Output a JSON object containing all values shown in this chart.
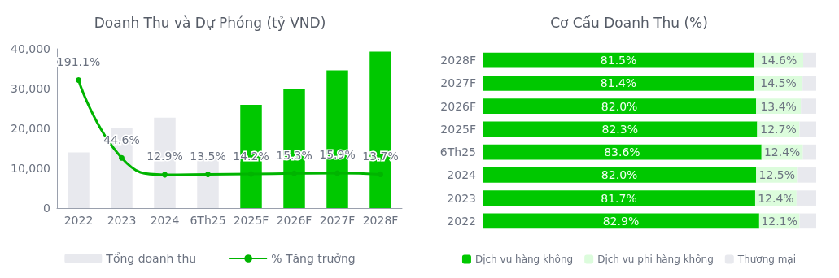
{
  "chart_data": [
    {
      "type": "bar",
      "title": "Doanh Thu và Dự Phóng (tỷ VND)",
      "categories": [
        "2022",
        "2023",
        "2024",
        "6Th25",
        "2025F",
        "2026F",
        "2027F",
        "2028F"
      ],
      "ylim": [
        0,
        40000
      ],
      "yticks": [
        0,
        {
          "value": 10000,
          "label": "10,000"
        },
        {
          "value": 20000,
          "label": "20,000"
        },
        {
          "value": 30000,
          "label": "30,000"
        },
        {
          "value": 40000,
          "label": "40,000"
        }
      ],
      "y2lim": [
        -50,
        250
      ],
      "grid": false,
      "legend": "bottom",
      "marker": "circle",
      "line_style": "solid",
      "series": [
        {
          "name": "Tổng doanh thu",
          "type": "bar",
          "color": "#e8e9ee",
          "colors": [
            "#e8e9ee",
            "#e8e9ee",
            "#e8e9ee",
            "#e8e9ee",
            "#00c800",
            "#00c800",
            "#00c800",
            "#00c800"
          ],
          "values": [
            14000,
            20000,
            22700,
            12700,
            25900,
            29800,
            34600,
            39300
          ]
        },
        {
          "name": "% Tăng trưởng",
          "type": "line",
          "axis": "y2",
          "color": "#00b400",
          "values": [
            191.1,
            44.6,
            12.9,
            13.5,
            14.2,
            15.3,
            15.9,
            13.7
          ],
          "value_labels": [
            "191.1%",
            "44.6%",
            "12.9%",
            "13.5%",
            "14.2%",
            "15.3%",
            "15.9%",
            "13.7%"
          ]
        }
      ]
    },
    {
      "type": "bar",
      "title": "Cơ Cấu Doanh Thu (%)",
      "orientation": "horizontal",
      "stacked": true,
      "categories": [
        "2028F",
        "2027F",
        "2026F",
        "2025F",
        "6Th25",
        "2024",
        "2023",
        "2022"
      ],
      "xlim": [
        0,
        100
      ],
      "tick_labels": "y",
      "grid": false,
      "legend": "bottom",
      "series": [
        {
          "name": "Dịch vụ hàng không",
          "color": "#00c800",
          "values": [
            81.5,
            81.4,
            82.0,
            82.3,
            83.6,
            82.0,
            81.7,
            82.9
          ],
          "value_labels": [
            "81.5%",
            "81.4%",
            "82.0%",
            "82.3%",
            "83.6%",
            "82.0%",
            "81.7%",
            "82.9%"
          ]
        },
        {
          "name": "Dịch vụ phi hàng không",
          "color": "#dcfcdc",
          "values": [
            14.6,
            14.5,
            13.4,
            12.7,
            12.4,
            12.5,
            12.4,
            12.1
          ],
          "value_labels": [
            "14.6%",
            "14.5%",
            "13.4%",
            "12.7%",
            "12.4%",
            "12.5%",
            "12.4%",
            "12.1%"
          ]
        },
        {
          "name": "Thương mại",
          "color": "#e8e9ee",
          "values": [
            3.9,
            4.1,
            4.6,
            5.0,
            4.0,
            5.5,
            5.9,
            5.0
          ],
          "value_labels": [
            null,
            null,
            null,
            null,
            null,
            null,
            null,
            null
          ]
        }
      ]
    }
  ]
}
